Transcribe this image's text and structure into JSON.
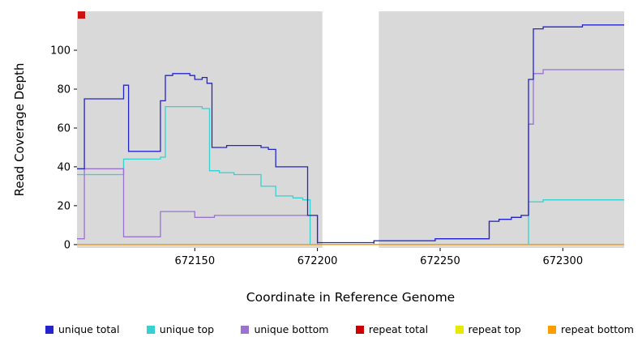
{
  "chart_data": {
    "type": "line",
    "step": "after",
    "title": "",
    "xlabel": "Coordinate in Reference Genome",
    "ylabel": "Read Coverage Depth",
    "xlim": [
      672102,
      672325
    ],
    "ylim": [
      -1.7,
      120
    ],
    "x_ticks": [
      672150,
      672200,
      672250,
      672300
    ],
    "y_ticks": [
      0,
      20,
      40,
      60,
      80,
      100
    ],
    "grid": false,
    "legend_position": "bottom",
    "plot_background": "#d9d9d9",
    "figure_background": "#ffffff",
    "gap_band": {
      "x0": 672202,
      "x1": 672225,
      "color": "#ffffff"
    },
    "corner_marker": {
      "color": "#cc1111"
    },
    "series": [
      {
        "name": "unique top",
        "color": "#35d0d0",
        "points": [
          [
            672102,
            36
          ],
          [
            672121,
            44
          ],
          [
            672136,
            45
          ],
          [
            672138,
            71
          ],
          [
            672153,
            70
          ],
          [
            672156,
            38
          ],
          [
            672160,
            37
          ],
          [
            672166,
            36
          ],
          [
            672177,
            30
          ],
          [
            672183,
            25
          ],
          [
            672190,
            24
          ],
          [
            672194,
            23
          ],
          [
            672197,
            0
          ],
          [
            672286,
            22
          ],
          [
            672292,
            23
          ],
          [
            672325,
            23
          ]
        ]
      },
      {
        "name": "unique bottom",
        "color": "#9b72cf",
        "points": [
          [
            672102,
            3
          ],
          [
            672105,
            39
          ],
          [
            672121,
            4
          ],
          [
            672136,
            17
          ],
          [
            672148,
            17
          ],
          [
            672150,
            14
          ],
          [
            672158,
            15
          ],
          [
            672200,
            0
          ],
          [
            672223,
            2
          ],
          [
            672248,
            3
          ],
          [
            672270,
            12
          ],
          [
            672274,
            13
          ],
          [
            672279,
            14
          ],
          [
            672283,
            15
          ],
          [
            672286,
            62
          ],
          [
            672288,
            88
          ],
          [
            672292,
            90
          ],
          [
            672325,
            90
          ]
        ]
      },
      {
        "name": "repeat total",
        "color": "#cc0000",
        "points": [
          [
            672102,
            0
          ],
          [
            672325,
            0
          ]
        ]
      },
      {
        "name": "repeat top",
        "color": "#e8e800",
        "points": [
          [
            672102,
            0
          ],
          [
            672325,
            0
          ]
        ]
      },
      {
        "name": "repeat bottom",
        "color": "#ff9d00",
        "points": [
          [
            672102,
            0
          ],
          [
            672325,
            0
          ]
        ]
      },
      {
        "name": "unique total",
        "color": "#2424cc",
        "points": [
          [
            672102,
            39
          ],
          [
            672105,
            75
          ],
          [
            672121,
            82
          ],
          [
            672123,
            48
          ],
          [
            672136,
            74
          ],
          [
            672138,
            87
          ],
          [
            672141,
            88
          ],
          [
            672148,
            87
          ],
          [
            672150,
            85
          ],
          [
            672153,
            86
          ],
          [
            672155,
            83
          ],
          [
            672157,
            50
          ],
          [
            672163,
            51
          ],
          [
            672177,
            50
          ],
          [
            672180,
            49
          ],
          [
            672183,
            40
          ],
          [
            672196,
            15
          ],
          [
            672200,
            1
          ],
          [
            672223,
            2
          ],
          [
            672248,
            3
          ],
          [
            672270,
            12
          ],
          [
            672274,
            13
          ],
          [
            672279,
            14
          ],
          [
            672283,
            15
          ],
          [
            672286,
            85
          ],
          [
            672288,
            111
          ],
          [
            672292,
            112
          ],
          [
            672308,
            113
          ],
          [
            672325,
            113
          ]
        ]
      }
    ],
    "legend": [
      {
        "label": "unique total",
        "color": "#2424cc"
      },
      {
        "label": "unique top",
        "color": "#35d0d0"
      },
      {
        "label": "unique bottom",
        "color": "#9b72cf"
      },
      {
        "label": "repeat total",
        "color": "#cc0000"
      },
      {
        "label": "repeat top",
        "color": "#e8e800"
      },
      {
        "label": "repeat bottom",
        "color": "#ff9d00"
      }
    ]
  }
}
